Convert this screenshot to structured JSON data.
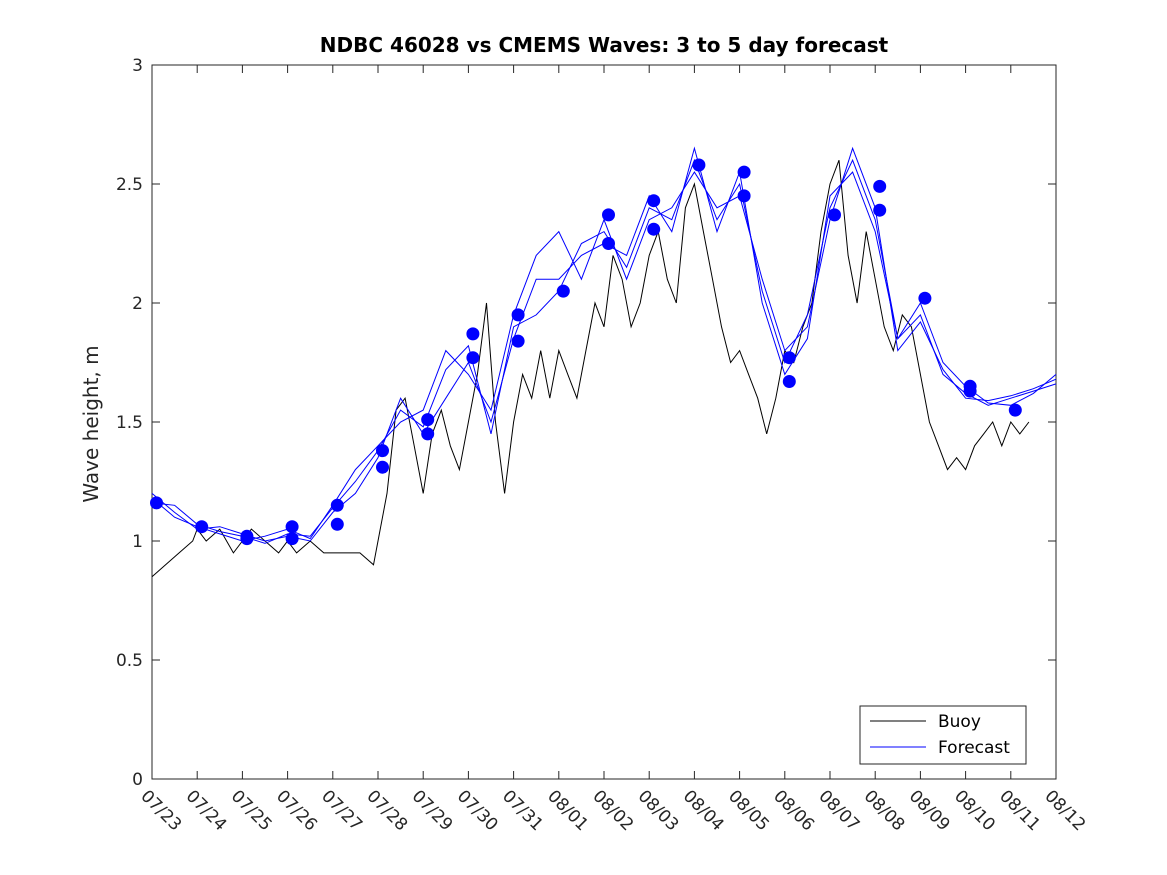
{
  "chart_data": {
    "type": "line",
    "title": "NDBC 46028 vs CMEMS Waves: 3 to 5 day forecast",
    "xlabel": "",
    "ylabel": "Wave height, m",
    "x_ticks": [
      "07/23",
      "07/24",
      "07/25",
      "07/26",
      "07/27",
      "07/28",
      "07/29",
      "07/30",
      "07/31",
      "08/01",
      "08/02",
      "08/03",
      "08/04",
      "08/05",
      "08/06",
      "08/07",
      "08/08",
      "08/09",
      "08/10",
      "08/11",
      "08/12"
    ],
    "xlim": [
      0,
      20
    ],
    "ylim": [
      0,
      3
    ],
    "y_ticks": [
      0,
      0.5,
      1,
      1.5,
      2,
      2.5,
      3
    ],
    "y_tick_labels": [
      "0",
      "0.5",
      "1",
      "1.5",
      "2",
      "2.5",
      "3"
    ],
    "grid": false,
    "legend_position": "bottom-right",
    "series": [
      {
        "name": "Buoy",
        "color": "#000000",
        "x": [
          0,
          0.3,
          0.6,
          0.9,
          1.0,
          1.2,
          1.5,
          1.8,
          2.0,
          2.2,
          2.5,
          2.8,
          3.0,
          3.2,
          3.5,
          3.8,
          4.0,
          4.3,
          4.6,
          4.9,
          5.0,
          5.2,
          5.4,
          5.6,
          5.8,
          6.0,
          6.2,
          6.4,
          6.6,
          6.8,
          7.0,
          7.2,
          7.4,
          7.6,
          7.8,
          8.0,
          8.2,
          8.4,
          8.6,
          8.8,
          9.0,
          9.2,
          9.4,
          9.6,
          9.8,
          10.0,
          10.2,
          10.4,
          10.6,
          10.8,
          11.0,
          11.2,
          11.4,
          11.6,
          11.8,
          12.0,
          12.2,
          12.4,
          12.6,
          12.8,
          13.0,
          13.2,
          13.4,
          13.6,
          13.8,
          14.0,
          14.2,
          14.4,
          14.6,
          14.8,
          15.0,
          15.2,
          15.4,
          15.6,
          15.8,
          16.0,
          16.2,
          16.4,
          16.6,
          16.8,
          17.0,
          17.2,
          17.4,
          17.6,
          17.8,
          18.0,
          18.2,
          18.4,
          18.6,
          18.8,
          19.0,
          19.2,
          19.4
        ],
        "values": [
          0.85,
          0.9,
          0.95,
          1.0,
          1.05,
          1.0,
          1.05,
          0.95,
          1.0,
          1.05,
          1.0,
          0.95,
          1.0,
          0.95,
          1.0,
          0.95,
          0.95,
          0.95,
          0.95,
          0.9,
          1.0,
          1.2,
          1.55,
          1.6,
          1.4,
          1.2,
          1.45,
          1.55,
          1.4,
          1.3,
          1.5,
          1.7,
          2.0,
          1.5,
          1.2,
          1.5,
          1.7,
          1.6,
          1.8,
          1.6,
          1.8,
          1.7,
          1.6,
          1.8,
          2.0,
          1.9,
          2.2,
          2.1,
          1.9,
          2.0,
          2.2,
          2.3,
          2.1,
          2.0,
          2.4,
          2.5,
          2.3,
          2.1,
          1.9,
          1.75,
          1.8,
          1.7,
          1.6,
          1.45,
          1.6,
          1.8,
          1.75,
          1.9,
          2.0,
          2.3,
          2.5,
          2.6,
          2.2,
          2.0,
          2.3,
          2.1,
          1.9,
          1.8,
          1.95,
          1.9,
          1.7,
          1.5,
          1.4,
          1.3,
          1.35,
          1.3,
          1.4,
          1.45,
          1.5,
          1.4,
          1.5,
          1.45,
          1.5
        ]
      },
      {
        "name": "Forecast",
        "color": "#0000ff",
        "x": [
          0,
          0.5,
          1.0,
          1.5,
          2.0,
          2.5,
          3.0,
          3.5,
          4.0,
          4.5,
          5.0,
          5.5,
          6.0,
          6.5,
          7.0,
          7.5,
          8.0,
          8.5,
          9.0,
          9.5,
          10.0,
          10.5,
          11.0,
          11.5,
          12.0,
          12.5,
          13.0,
          13.5,
          14.0,
          14.5,
          15.0,
          15.5,
          16.0,
          16.5,
          17.0,
          17.5,
          18.0,
          18.5,
          19.0,
          19.5,
          20.0
        ],
        "values": [
          1.16,
          1.15,
          1.07,
          1.04,
          1.02,
          0.99,
          1.03,
          1.02,
          1.14,
          1.25,
          1.38,
          1.55,
          1.48,
          1.72,
          1.82,
          1.45,
          1.9,
          1.95,
          2.05,
          2.25,
          2.3,
          2.15,
          2.4,
          2.35,
          2.6,
          2.35,
          2.5,
          2.05,
          1.75,
          1.95,
          2.4,
          2.6,
          2.35,
          1.85,
          2.0,
          1.75,
          1.65,
          1.58,
          1.57,
          1.62,
          1.7
        ]
      },
      {
        "name": "",
        "color": "#0000ff",
        "x": [
          0,
          0.5,
          1.0,
          1.5,
          2.0,
          2.5,
          3.0,
          3.5,
          4.0,
          4.5,
          5.0,
          5.5,
          6.0,
          6.5,
          7.0,
          7.5,
          8.0,
          8.5,
          9.0,
          9.5,
          10.0,
          10.5,
          11.0,
          11.5,
          12.0,
          12.5,
          13.0,
          13.5,
          14.0,
          14.5,
          15.0,
          15.5,
          16.0,
          16.5,
          17.0,
          17.5,
          18.0,
          18.5,
          19.0,
          19.5,
          20.0
        ],
        "values": [
          1.2,
          1.12,
          1.05,
          1.06,
          1.03,
          1.0,
          1.02,
          1.0,
          1.12,
          1.2,
          1.35,
          1.6,
          1.45,
          1.6,
          1.75,
          1.5,
          1.85,
          2.1,
          2.1,
          2.2,
          2.25,
          2.2,
          2.45,
          2.3,
          2.65,
          2.3,
          2.55,
          2.0,
          1.7,
          1.85,
          2.45,
          2.55,
          2.3,
          1.85,
          1.95,
          1.7,
          1.62,
          1.57,
          1.6,
          1.63,
          1.66
        ]
      },
      {
        "name": "",
        "color": "#0000ff",
        "x": [
          0,
          0.5,
          1.0,
          1.5,
          2.0,
          2.5,
          3.0,
          3.5,
          4.0,
          4.5,
          5.0,
          5.5,
          6.0,
          6.5,
          7.0,
          7.5,
          8.0,
          8.5,
          9.0,
          9.5,
          10.0,
          10.5,
          11.0,
          11.5,
          12.0,
          12.5,
          13.0,
          13.5,
          14.0,
          14.5,
          15.0,
          15.5,
          16.0,
          16.5,
          17.0,
          17.5,
          18.0,
          18.5,
          19.0,
          19.5,
          20.0
        ],
        "values": [
          1.18,
          1.1,
          1.06,
          1.03,
          1.0,
          1.02,
          1.05,
          1.01,
          1.15,
          1.3,
          1.4,
          1.5,
          1.55,
          1.8,
          1.7,
          1.55,
          1.95,
          2.2,
          2.3,
          2.1,
          2.35,
          2.1,
          2.35,
          2.4,
          2.55,
          2.4,
          2.45,
          2.1,
          1.8,
          1.9,
          2.35,
          2.65,
          2.4,
          1.8,
          1.92,
          1.72,
          1.6,
          1.59,
          1.61,
          1.64,
          1.68
        ]
      }
    ],
    "markers": {
      "color": "#0000ff",
      "x": [
        0.1,
        1.1,
        2.1,
        2.1,
        3.1,
        3.1,
        4.1,
        4.1,
        5.1,
        5.1,
        6.1,
        6.1,
        7.1,
        7.1,
        8.1,
        8.1,
        9.1,
        10.1,
        10.1,
        11.1,
        11.1,
        12.1,
        13.1,
        13.1,
        14.1,
        14.1,
        15.1,
        16.1,
        16.1,
        17.1,
        18.1,
        18.1,
        19.1
      ],
      "values": [
        1.16,
        1.06,
        1.02,
        1.01,
        1.06,
        1.01,
        1.15,
        1.07,
        1.38,
        1.31,
        1.51,
        1.45,
        1.87,
        1.77,
        1.95,
        1.84,
        2.05,
        2.37,
        2.25,
        2.43,
        2.31,
        2.58,
        2.55,
        2.45,
        1.77,
        1.67,
        2.37,
        2.49,
        2.39,
        2.02,
        1.65,
        1.63,
        1.55
      ]
    }
  }
}
